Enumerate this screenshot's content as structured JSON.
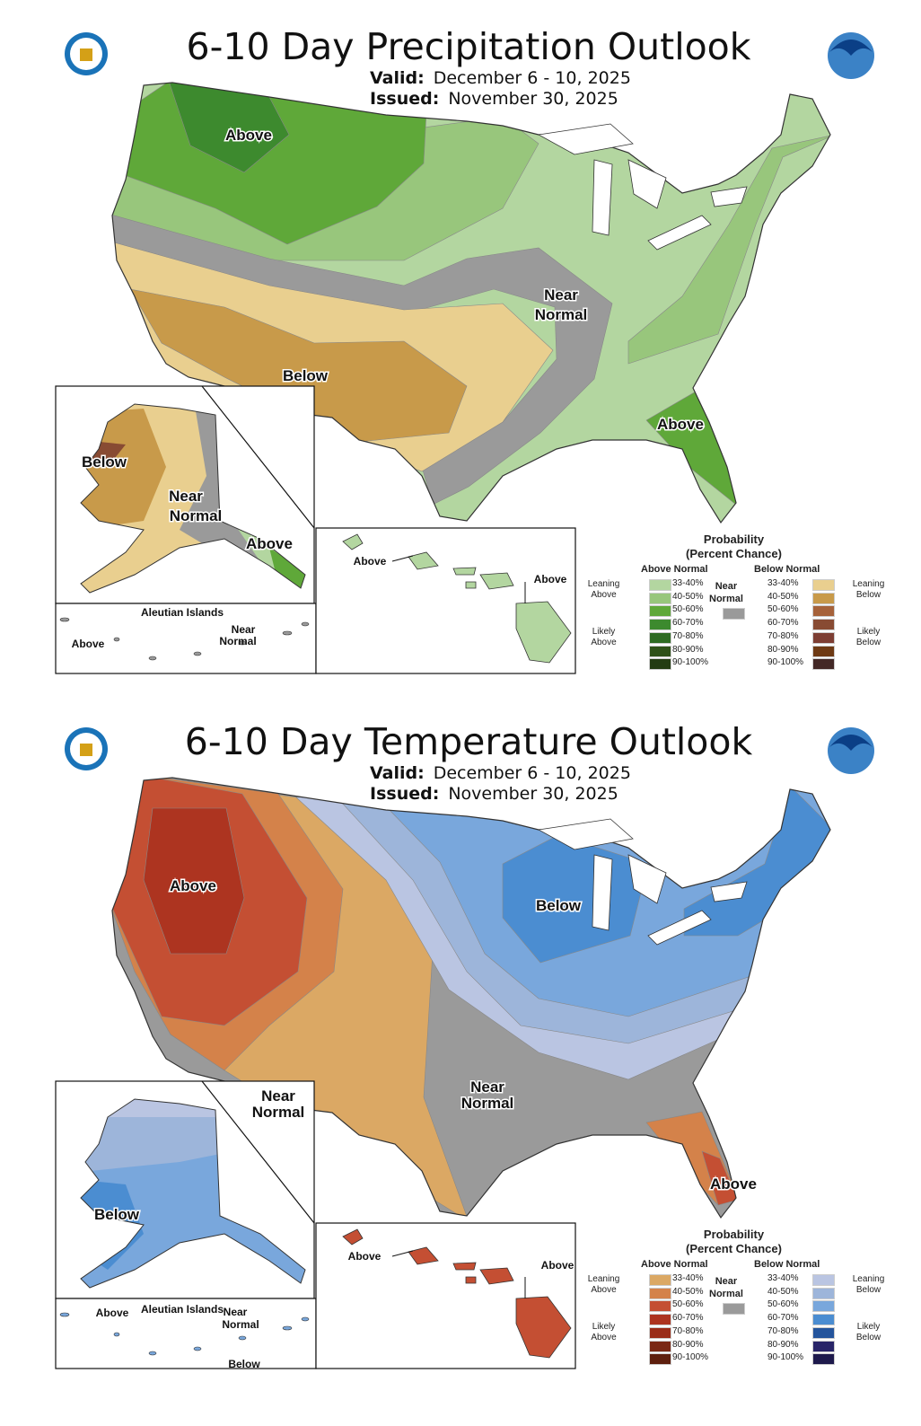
{
  "precip": {
    "title": "6-10 Day Precipitation Outlook",
    "valid_label": "Valid:",
    "valid": "December 6 - 10, 2025",
    "issued_label": "Issued:",
    "issued": "November 30, 2025",
    "labels": {
      "above_nw": "Above",
      "near_1": "Near",
      "near_2": "Normal",
      "below_sw": "Below",
      "above_se": "Above",
      "ak_below": "Below",
      "ak_near_1": "Near",
      "ak_near_2": "Normal",
      "ak_above": "Above",
      "aleutian_title": "Aleutian Islands",
      "aleutian_above": "Above",
      "aleutian_near_1": "Near",
      "aleutian_near_2": "Normal",
      "hi_above_1": "Above",
      "hi_above_2": "Above"
    },
    "legend": {
      "title_1": "Probability",
      "title_2": "(Percent Chance)",
      "above_header": "Above Normal",
      "below_header": "Below Normal",
      "near_1": "Near",
      "near_2": "Normal",
      "near_color": "#9a9a9a",
      "leaning_above_1": "Leaning",
      "leaning_above_2": "Above",
      "likely_above_1": "Likely",
      "likely_above_2": "Above",
      "leaning_below_1": "Leaning",
      "leaning_below_2": "Below",
      "likely_below_1": "Likely",
      "likely_below_2": "Below",
      "above": [
        {
          "range": "33-40%",
          "color": "#b3d6a0"
        },
        {
          "range": "40-50%",
          "color": "#98c67c"
        },
        {
          "range": "50-60%",
          "color": "#5fa839"
        },
        {
          "range": "60-70%",
          "color": "#3d8a2e"
        },
        {
          "range": "70-80%",
          "color": "#2e6b22"
        },
        {
          "range": "80-90%",
          "color": "#2f5119"
        },
        {
          "range": "90-100%",
          "color": "#233c12"
        }
      ],
      "below": [
        {
          "range": "33-40%",
          "color": "#e9cf8f"
        },
        {
          "range": "40-50%",
          "color": "#c89a4a"
        },
        {
          "range": "50-60%",
          "color": "#a6623a"
        },
        {
          "range": "60-70%",
          "color": "#884b33"
        },
        {
          "range": "70-80%",
          "color": "#7d3e33"
        },
        {
          "range": "80-90%",
          "color": "#6e3a14"
        },
        {
          "range": "90-100%",
          "color": "#432826"
        }
      ]
    }
  },
  "temp": {
    "title": "6-10 Day Temperature Outlook",
    "valid_label": "Valid:",
    "valid": "December 6 - 10, 2025",
    "issued_label": "Issued:",
    "issued": "November 30, 2025",
    "labels": {
      "above_w": "Above",
      "below_ne": "Below",
      "near_w_1": "Near",
      "near_w_2": "Normal",
      "near_s_1": "Near",
      "near_s_2": "Normal",
      "above_fl": "Above",
      "ak_below": "Below",
      "aleutian_title": "Aleutian Islands",
      "aleutian_above": "Above",
      "aleutian_near_1": "Near",
      "aleutian_near_2": "Normal",
      "aleutian_below": "Below",
      "hi_above_1": "Above",
      "hi_above_2": "Above"
    },
    "legend": {
      "title_1": "Probability",
      "title_2": "(Percent Chance)",
      "above_header": "Above Normal",
      "below_header": "Below Normal",
      "near_1": "Near",
      "near_2": "Normal",
      "near_color": "#9a9a9a",
      "leaning_above_1": "Leaning",
      "leaning_above_2": "Above",
      "likely_above_1": "Likely",
      "likely_above_2": "Above",
      "leaning_below_1": "Leaning",
      "leaning_below_2": "Below",
      "likely_below_1": "Likely",
      "likely_below_2": "Below",
      "above": [
        {
          "range": "33-40%",
          "color": "#dba864"
        },
        {
          "range": "40-50%",
          "color": "#d4824a"
        },
        {
          "range": "50-60%",
          "color": "#c44f33"
        },
        {
          "range": "60-70%",
          "color": "#ad3420"
        },
        {
          "range": "70-80%",
          "color": "#9a2c18"
        },
        {
          "range": "80-90%",
          "color": "#7a2814"
        },
        {
          "range": "90-100%",
          "color": "#5e1f0e"
        }
      ],
      "below": [
        {
          "range": "33-40%",
          "color": "#bac5e2"
        },
        {
          "range": "40-50%",
          "color": "#9db5da"
        },
        {
          "range": "50-60%",
          "color": "#79a7dc"
        },
        {
          "range": "60-70%",
          "color": "#4b8dd1"
        },
        {
          "range": "70-80%",
          "color": "#24549c"
        },
        {
          "range": "80-90%",
          "color": "#282468"
        },
        {
          "range": "90-100%",
          "color": "#1e1a4c"
        }
      ]
    }
  }
}
